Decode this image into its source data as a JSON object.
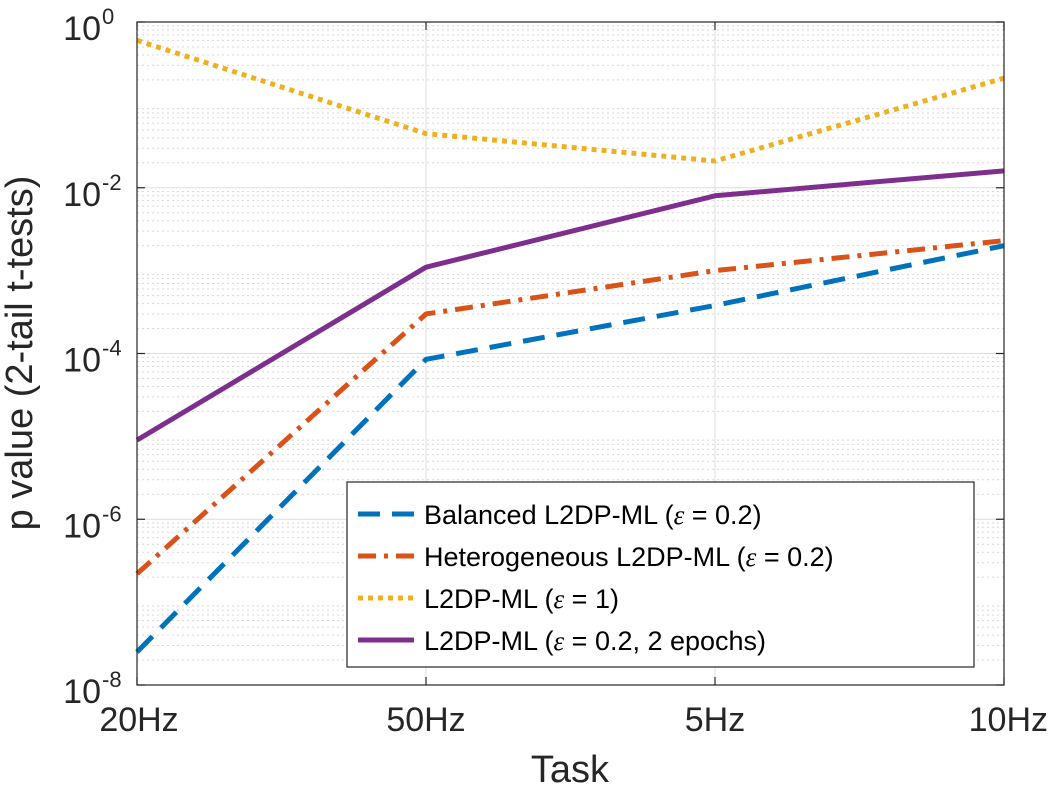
{
  "chart_data": {
    "type": "line",
    "title": "",
    "xlabel": "Task",
    "ylabel": "p value (2-tail t-tests)",
    "categories": [
      "20Hz",
      "50Hz",
      "5Hz",
      "10Hz"
    ],
    "yscale": "log",
    "ylim": [
      1e-08,
      1
    ],
    "yticks": [
      {
        "value": 1e-08,
        "base": "10",
        "exp": "-8"
      },
      {
        "value": 1e-06,
        "base": "10",
        "exp": "-6"
      },
      {
        "value": 0.0001,
        "base": "10",
        "exp": "-4"
      },
      {
        "value": 0.01,
        "base": "10",
        "exp": "-2"
      },
      {
        "value": 1,
        "base": "10",
        "exp": "0"
      }
    ],
    "grid": true,
    "legend_position": "bottom-right",
    "series": [
      {
        "name": "Balanced L2DP-ML (ε = 0.2)",
        "legend_prefix": "Balanced L2DP-ML (",
        "legend_suffix": " = 0.2)",
        "color": "#0072BD",
        "style": "dashed",
        "values": [
          2.5e-08,
          8.5e-05,
          0.00038,
          0.002
        ]
      },
      {
        "name": "Heterogeneous L2DP-ML (ε = 0.2)",
        "legend_prefix": "Heterogeneous L2DP-ML (",
        "legend_suffix": " = 0.2)",
        "color": "#D95319",
        "style": "dashdot",
        "values": [
          2.2e-07,
          0.0003,
          0.001,
          0.0023
        ]
      },
      {
        "name": "L2DP-ML (ε = 1)",
        "legend_prefix": "L2DP-ML (",
        "legend_suffix": " = 1)",
        "color": "#EDB120",
        "style": "dotted",
        "values": [
          0.6,
          0.045,
          0.021,
          0.21
        ]
      },
      {
        "name": "L2DP-ML (ε = 0.2, 2 epochs)",
        "legend_prefix": "L2DP-ML (",
        "legend_suffix": " = 0.2, 2 epochs)",
        "color": "#7E2F8E",
        "style": "solid",
        "values": [
          9e-06,
          0.0011,
          0.008,
          0.016
        ]
      }
    ],
    "epsilon_symbol": "ε"
  }
}
